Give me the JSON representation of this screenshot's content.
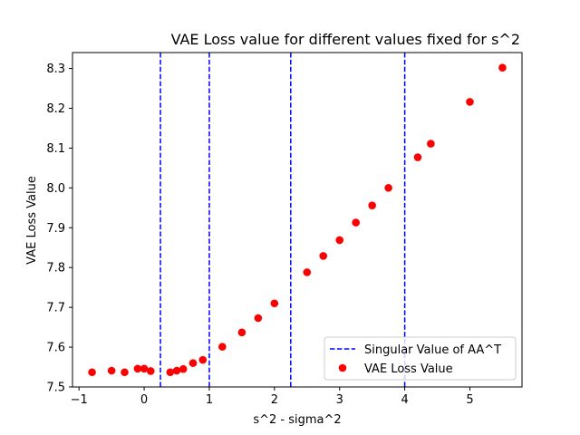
{
  "chart_data": {
    "type": "scatter",
    "title": "VAE Loss value for different values fixed for s^2",
    "xlabel": "s^2 - sigma^2",
    "ylabel": "VAE Loss Value",
    "xlim": [
      -1.1,
      5.8
    ],
    "ylim": [
      7.5,
      8.34
    ],
    "xticks": [
      -1,
      0,
      1,
      2,
      3,
      4,
      5
    ],
    "yticks": [
      7.5,
      7.6,
      7.7,
      7.8,
      7.9,
      8.0,
      8.1,
      8.2,
      8.3
    ],
    "ytick_labels": [
      "7.5",
      "7.6",
      "7.7",
      "7.8",
      "7.9",
      "8.0",
      "8.1",
      "8.2",
      "8.3"
    ],
    "grid": false,
    "legend_position": "bottom-right",
    "series": [
      {
        "name": "VAE Loss Value",
        "kind": "scatter",
        "color": "#ff0000",
        "x": [
          -0.8,
          -0.5,
          -0.3,
          -0.1,
          0.0,
          0.1,
          0.4,
          0.5,
          0.6,
          0.75,
          0.9,
          1.2,
          1.5,
          1.75,
          2.0,
          2.5,
          2.75,
          3.0,
          3.25,
          3.5,
          3.75,
          4.2,
          4.4,
          5.0,
          5.5
        ],
        "y": [
          7.537,
          7.541,
          7.537,
          7.546,
          7.546,
          7.54,
          7.537,
          7.541,
          7.545,
          7.56,
          7.568,
          7.601,
          7.637,
          7.673,
          7.71,
          7.788,
          7.829,
          7.869,
          7.913,
          7.956,
          8.0,
          8.077,
          8.111,
          8.216,
          8.302
        ]
      },
      {
        "name": "Singular Value of AA^T",
        "kind": "vline",
        "color": "#0000ff",
        "x": [
          0.25,
          1.0,
          2.25,
          4.0
        ]
      }
    ]
  }
}
